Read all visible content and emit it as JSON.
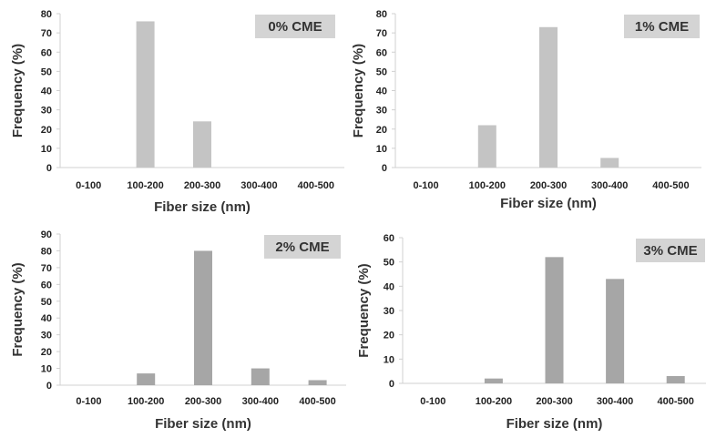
{
  "chart_data": [
    {
      "type": "bar",
      "title": "0% CME",
      "categories": [
        "0-100",
        "100-200",
        "200-300",
        "300-400",
        "400-500"
      ],
      "values": [
        0,
        76,
        24,
        0,
        0
      ],
      "xlabel": "Fiber size (nm)",
      "ylabel": "Frequency (%)",
      "ylim": [
        0,
        80
      ],
      "yticks": [
        0,
        10,
        20,
        30,
        40,
        50,
        60,
        70,
        80
      ],
      "bar_color": "#c4c4c4",
      "grid": false
    },
    {
      "type": "bar",
      "title": "1% CME",
      "categories": [
        "0-100",
        "100-200",
        "200-300",
        "300-400",
        "400-500"
      ],
      "values": [
        0,
        22,
        73,
        5,
        0
      ],
      "xlabel": "Fiber size (nm)",
      "ylabel": "Frequency (%)",
      "ylim": [
        0,
        80
      ],
      "yticks": [
        0,
        10,
        20,
        30,
        40,
        50,
        60,
        70,
        80
      ],
      "bar_color": "#c4c4c4",
      "grid": false
    },
    {
      "type": "bar",
      "title": "2% CME",
      "categories": [
        "0-100",
        "100-200",
        "200-300",
        "300-400",
        "400-500"
      ],
      "values": [
        0,
        7,
        80,
        10,
        3
      ],
      "xlabel": "Fiber size (nm)",
      "ylabel": "Frequency (%)",
      "ylim": [
        0,
        90
      ],
      "yticks": [
        0,
        10,
        20,
        30,
        40,
        50,
        60,
        70,
        80,
        90
      ],
      "bar_color": "#a6a6a6",
      "grid": false
    },
    {
      "type": "bar",
      "title": "3% CME",
      "categories": [
        "0-100",
        "100-200",
        "200-300",
        "300-400",
        "400-500"
      ],
      "values": [
        0,
        2,
        52,
        43,
        3
      ],
      "xlabel": "Fiber size (nm)",
      "ylabel": "Frequency (%)",
      "ylim": [
        0,
        60
      ],
      "yticks": [
        0,
        10,
        20,
        30,
        40,
        50,
        60
      ],
      "bar_color": "#a6a6a6",
      "grid": false
    }
  ]
}
